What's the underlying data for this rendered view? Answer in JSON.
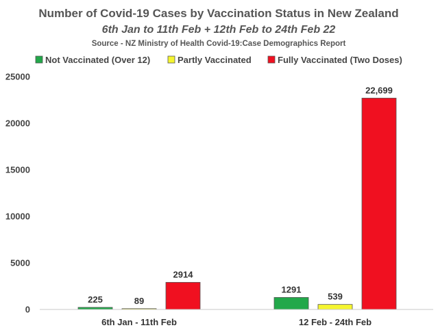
{
  "chart_data": {
    "type": "bar",
    "title": "Number of Covid-19 Cases by Vaccination Status in New Zealand",
    "subtitle": "6th Jan to 11th Feb + 12th Feb to 24th Feb 22",
    "source": "Source - NZ Ministry of Health Covid-19:Case Demographics Report",
    "categories": [
      "6th Jan - 11th Feb",
      "12 Feb - 24th Feb"
    ],
    "series": [
      {
        "name": "Not Vaccinated (Over 12)",
        "color": "#22a84a",
        "values": [
          225,
          1291
        ],
        "labels": [
          "225",
          "1291"
        ]
      },
      {
        "name": "Partly Vaccinated",
        "color": "#f5f530",
        "values": [
          89,
          539
        ],
        "labels": [
          "89",
          "539"
        ]
      },
      {
        "name": "Fully Vaccinated (Two Doses)",
        "color": "#f01020",
        "values": [
          2914,
          22699
        ],
        "labels": [
          "2914",
          "22,699"
        ]
      }
    ],
    "yticks": [
      "0",
      "5000",
      "10000",
      "15000",
      "20000",
      "25000"
    ],
    "ylim": [
      0,
      25000
    ],
    "xlabel": "",
    "ylabel": "",
    "legend_position": "top",
    "grid": false
  }
}
